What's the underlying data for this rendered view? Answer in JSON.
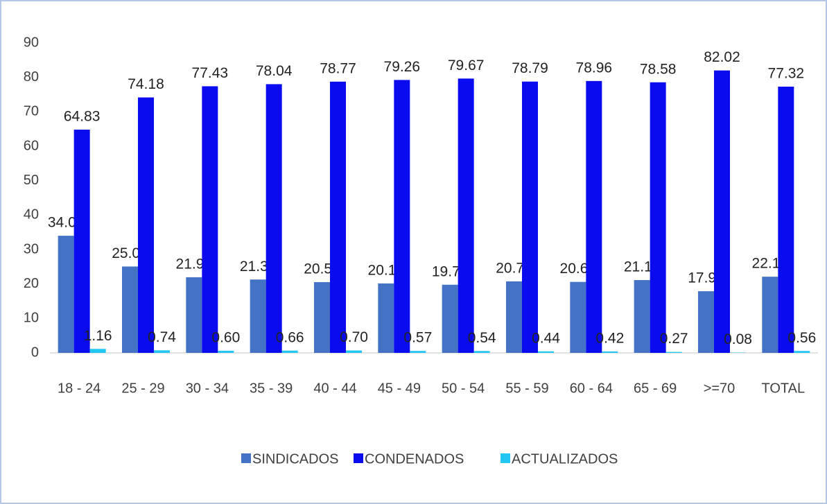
{
  "chart_data": {
    "type": "bar",
    "categories": [
      "18 - 24",
      "25 - 29",
      "30 - 34",
      "35 - 39",
      "40 - 44",
      "45 - 49",
      "50 - 54",
      "55 - 59",
      "60 - 64",
      "65 - 69",
      ">=70",
      "TOTAL"
    ],
    "series": [
      {
        "name": "SINDICADOS",
        "color": "#4472c4",
        "values": [
          34.01,
          25.08,
          21.97,
          21.3,
          20.54,
          20.17,
          19.79,
          20.77,
          20.61,
          21.15,
          17.9,
          22.12
        ],
        "value_labels": [
          "34.01",
          "25.08",
          "21.97",
          "21.30",
          "20.54",
          "20.17",
          "19.79",
          "20.77",
          "20.61",
          "21.15",
          "17.90",
          "22.12"
        ]
      },
      {
        "name": "CONDENADOS",
        "color": "#0b0bf0",
        "values": [
          64.83,
          74.18,
          77.43,
          78.04,
          78.77,
          79.26,
          79.67,
          78.79,
          78.96,
          78.58,
          82.02,
          77.32
        ],
        "value_labels": [
          "64.83",
          "74.18",
          "77.43",
          "78.04",
          "78.77",
          "79.26",
          "79.67",
          "78.79",
          "78.96",
          "78.58",
          "82.02",
          "77.32"
        ]
      },
      {
        "name": "ACTUALIZADOS",
        "color": "#22c6f2",
        "values": [
          1.16,
          0.74,
          0.6,
          0.66,
          0.7,
          0.57,
          0.54,
          0.44,
          0.42,
          0.27,
          0.08,
          0.56
        ],
        "value_labels": [
          "1.16",
          "0.74",
          "0.60",
          "0.66",
          "0.70",
          "0.57",
          "0.54",
          "0.44",
          "0.42",
          "0.27",
          "0.08",
          "0.56"
        ]
      }
    ],
    "ylim": [
      0,
      90
    ],
    "yticks": [
      0,
      10,
      20,
      30,
      40,
      50,
      60,
      70,
      80,
      90
    ],
    "grid": false,
    "legend": "bottom"
  }
}
